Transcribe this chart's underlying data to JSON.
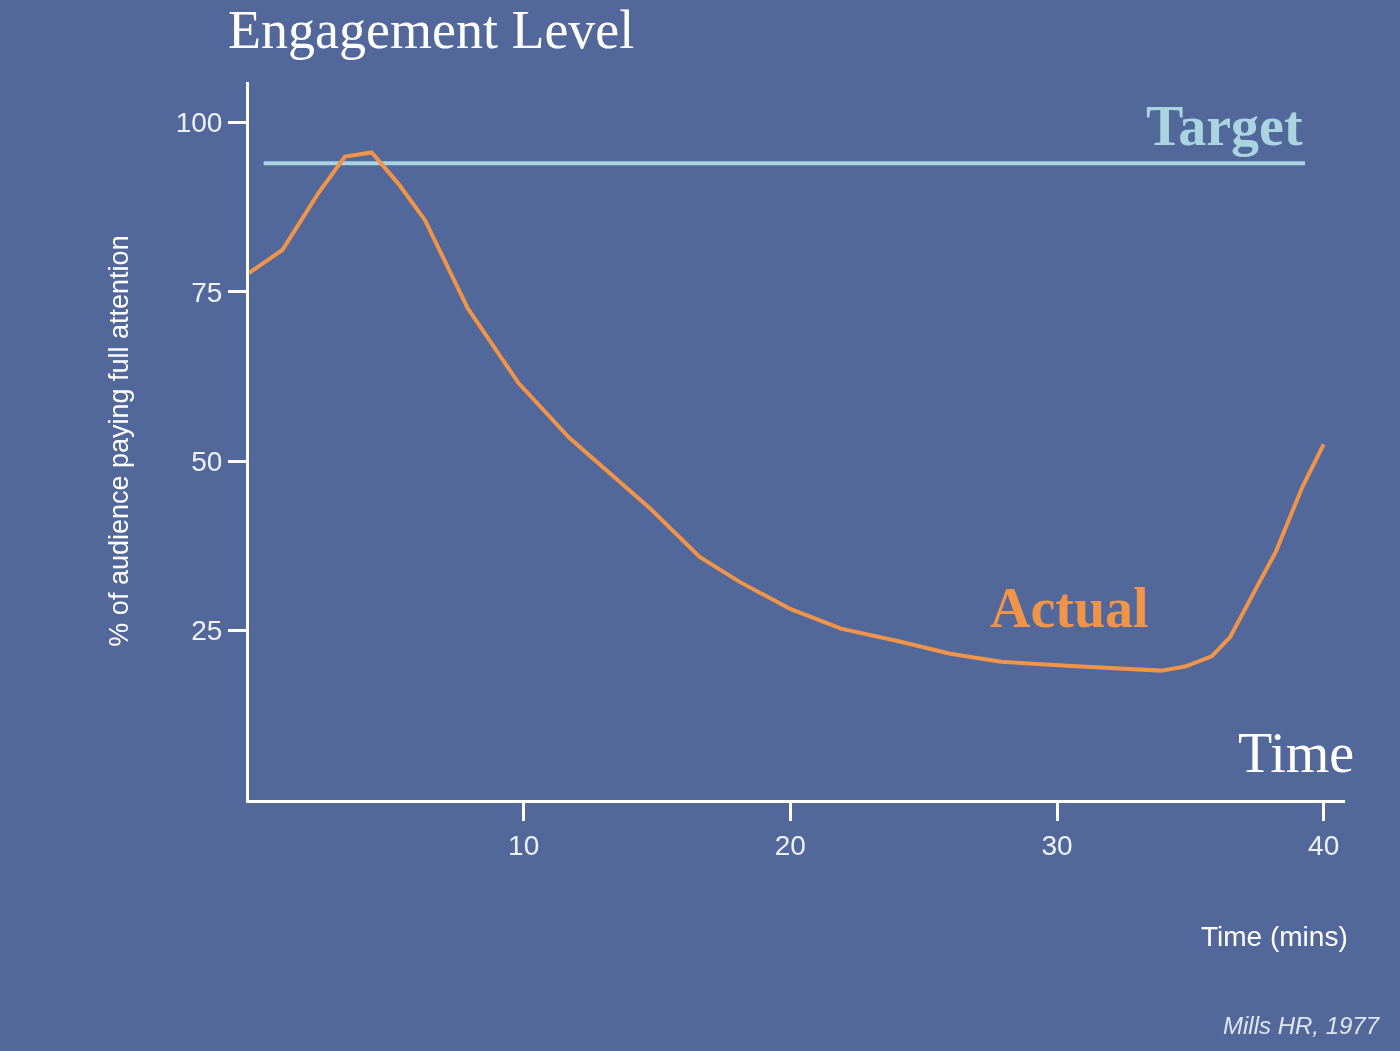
{
  "chart_data": {
    "type": "line",
    "title": "Engagement Level",
    "xlabel": "Time (mins)",
    "ylabel": "% of audience paying full attention",
    "annotations": [
      "Time",
      "Mills HR, 1977"
    ],
    "xlim": [
      -0.3,
      40.8
    ],
    "ylim": [
      0,
      106
    ],
    "xticks": [
      10,
      20,
      30,
      40
    ],
    "yticks": [
      25,
      50,
      75,
      100
    ],
    "grid": false,
    "legend": false,
    "marker": "none",
    "line_style": "solid",
    "series": [
      {
        "name": "Target",
        "color": "#a9d4e0",
        "x": [
          0.25,
          39.3
        ],
        "values": [
          94,
          94
        ]
      },
      {
        "name": "Actual",
        "color": "#f0944a",
        "x": [
          -0.3,
          0.95,
          2.3,
          3.3,
          4.3,
          5.3,
          6.3,
          7.9,
          9.8,
          11.7,
          14.7,
          16.6,
          18.1,
          20,
          21.9,
          24.1,
          26,
          27.9,
          30.9,
          33.9,
          34.8,
          35.8,
          36.5,
          37.5,
          38.2,
          39.2,
          40
        ],
        "values": [
          77.8,
          81.2,
          89.6,
          95,
          95.6,
          91,
          85.6,
          72.6,
          61.6,
          53.5,
          43.2,
          35.9,
          32.2,
          28.2,
          25.3,
          23.4,
          21.6,
          20.4,
          19.7,
          19.1,
          19.7,
          21.2,
          24.1,
          31.5,
          36.6,
          46.2,
          52.5
        ]
      }
    ]
  }
}
